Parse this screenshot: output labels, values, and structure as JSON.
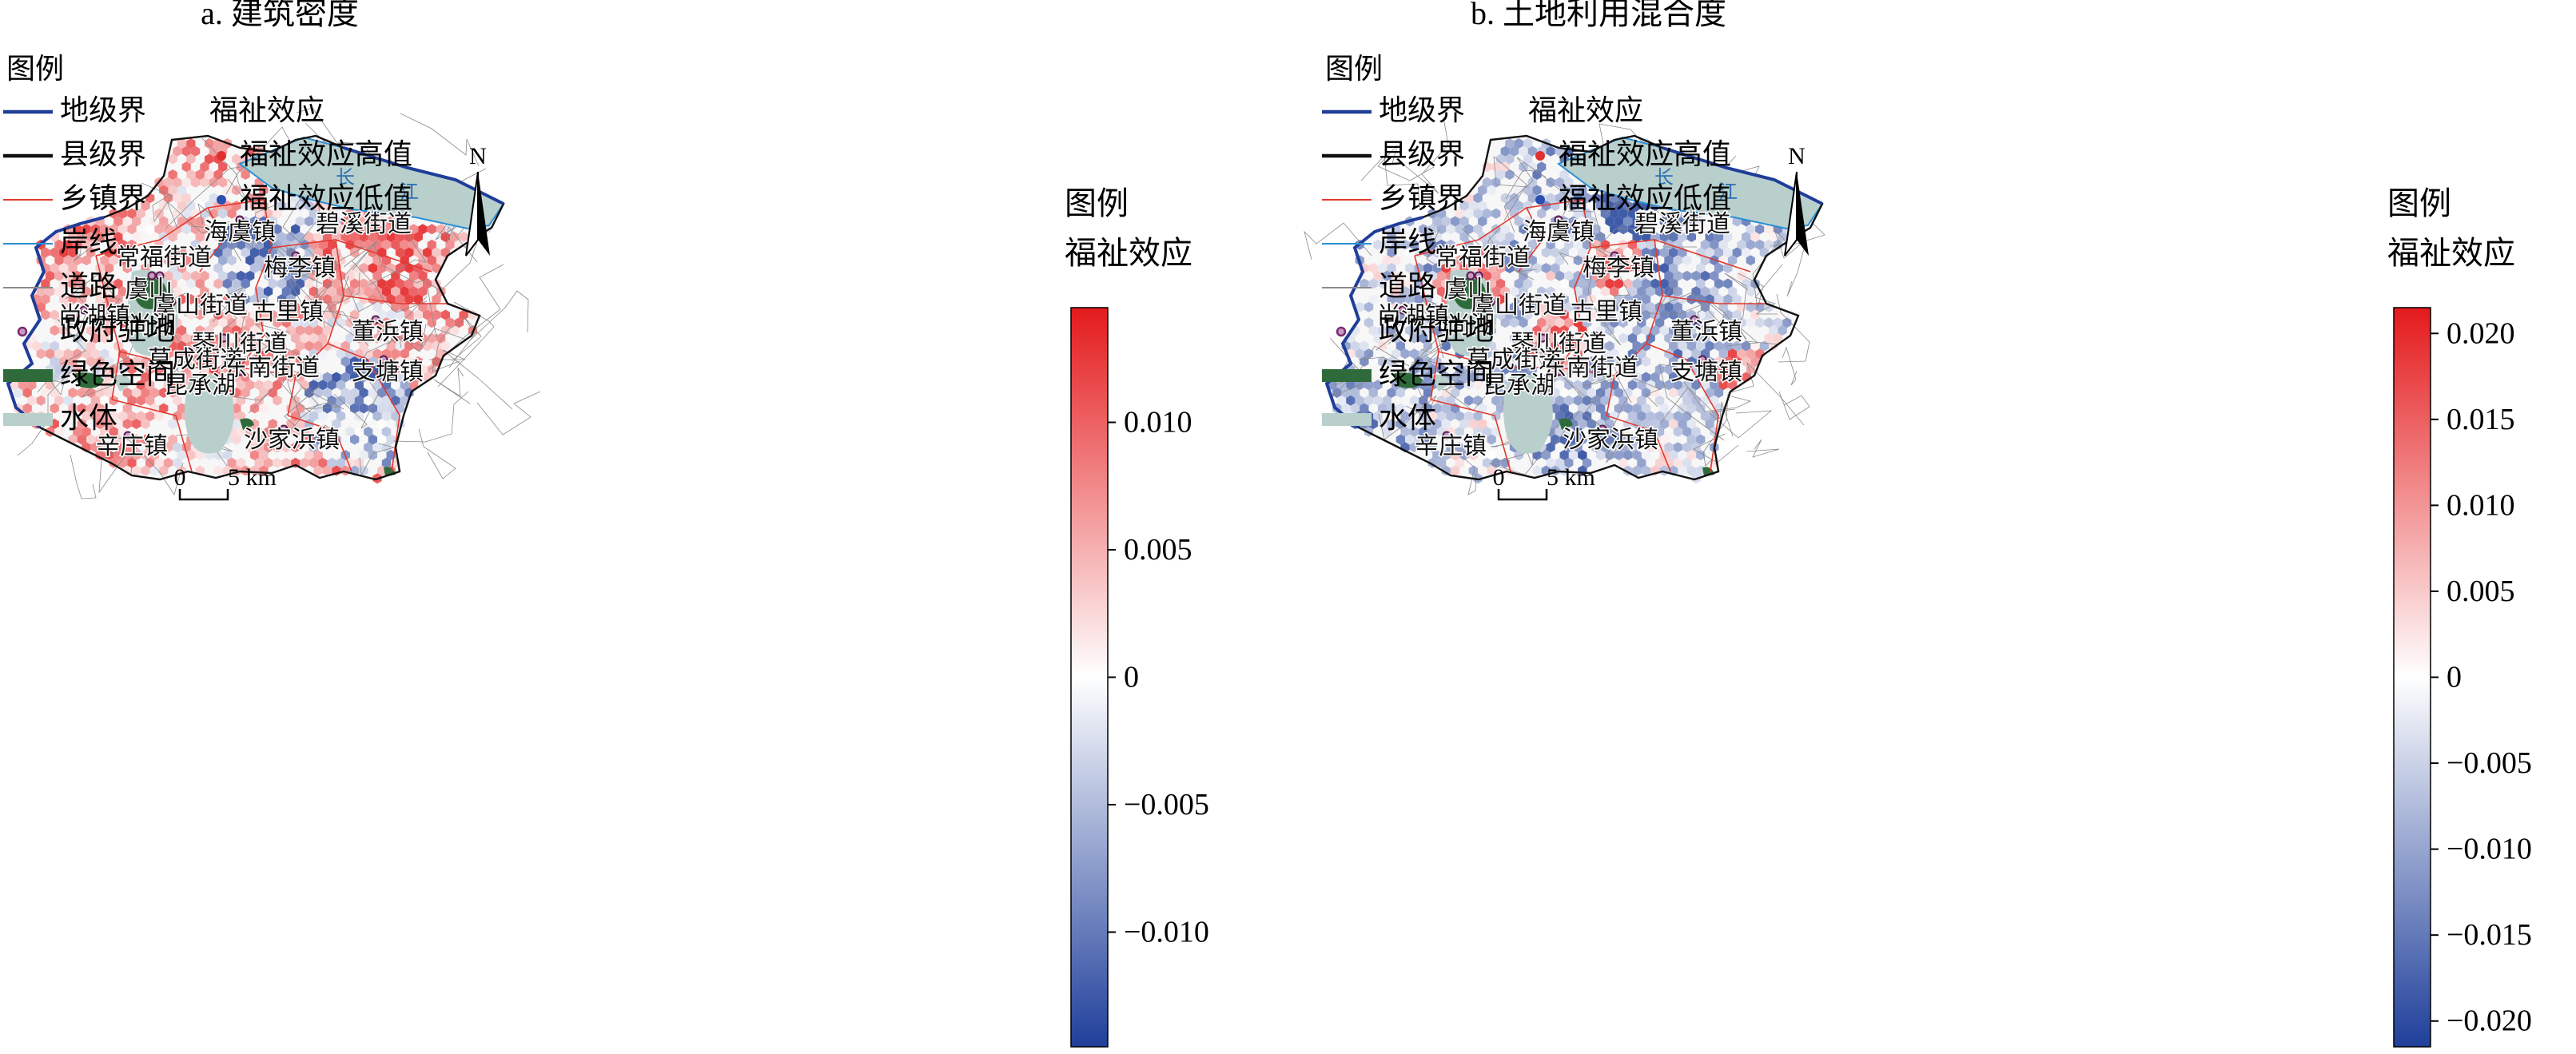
{
  "panels": [
    {
      "title": "a. 建筑密度",
      "legend_title": "图例",
      "colorbar_title_1": "图例",
      "colorbar_title_2": "福祉效应",
      "colorbar_ticks": [
        {
          "value": 0.01,
          "label": "0.010"
        },
        {
          "value": 0.005,
          "label": "0.005"
        },
        {
          "value": 0,
          "label": "0"
        },
        {
          "value": -0.005,
          "label": "−0.005"
        },
        {
          "value": -0.01,
          "label": "−0.010"
        }
      ],
      "colorbar_range": [
        -0.0145,
        0.0145
      ],
      "scale_zero": "0",
      "scale_label": "5 km",
      "north": "N"
    },
    {
      "title": "b. 土地利用混合度",
      "legend_title": "图例",
      "colorbar_title_1": "图例",
      "colorbar_title_2": "福祉效应",
      "colorbar_ticks": [
        {
          "value": 0.02,
          "label": "0.020"
        },
        {
          "value": 0.015,
          "label": "0.015"
        },
        {
          "value": 0.01,
          "label": "0.010"
        },
        {
          "value": 0.005,
          "label": "0.005"
        },
        {
          "value": 0,
          "label": "0"
        },
        {
          "value": -0.005,
          "label": "−0.005"
        },
        {
          "value": -0.01,
          "label": "−0.010"
        },
        {
          "value": -0.015,
          "label": "−0.015"
        },
        {
          "value": -0.02,
          "label": "−0.020"
        }
      ],
      "colorbar_range": [
        -0.0215,
        0.0215
      ],
      "scale_zero": "0",
      "scale_label": "5 km",
      "north": "N"
    }
  ],
  "legend": {
    "boundaries": [
      {
        "label": "地级界",
        "color": "#1f3d99"
      },
      {
        "label": "县级界",
        "color": "#111111"
      },
      {
        "label": "乡镇界",
        "color": "#e03a2f"
      },
      {
        "label": "岸线",
        "color": "#2a8fd4"
      },
      {
        "label": "道路",
        "color": "#8a8a8a"
      },
      {
        "label": "政府驻地",
        "color": "#7b2a6e"
      },
      {
        "label": "绿色空间",
        "color": "#2f6b3a"
      },
      {
        "label": "水体",
        "color": "#b8cfcc"
      }
    ],
    "effect_title": "福祉效应",
    "effect_high": {
      "label": "福祉效应高值",
      "color": "#e03030"
    },
    "effect_low": {
      "label": "福祉效应低值",
      "color": "#2a4fb0"
    }
  },
  "places": [
    {
      "name": "海虞镇"
    },
    {
      "name": "碧溪街道"
    },
    {
      "name": "常福街道"
    },
    {
      "name": "梅李镇"
    },
    {
      "name": "虞山"
    },
    {
      "name": "虞山街道"
    },
    {
      "name": "尚湖镇"
    },
    {
      "name": "尚湖"
    },
    {
      "name": "古里镇"
    },
    {
      "name": "董浜镇"
    },
    {
      "name": "琴川街道"
    },
    {
      "name": "莫成街道"
    },
    {
      "name": "东南街道"
    },
    {
      "name": "支塘镇"
    },
    {
      "name": "昆承湖"
    },
    {
      "name": "辛庄镇"
    },
    {
      "name": "沙家浜镇"
    }
  ],
  "river_label": [
    "长",
    "江"
  ],
  "colors": {
    "cmap_high": "#e41a1c",
    "cmap_mid": "#ffffff",
    "cmap_low": "#1f3f9a",
    "water": "#b8cfcc",
    "green": "#2f6b3a"
  }
}
